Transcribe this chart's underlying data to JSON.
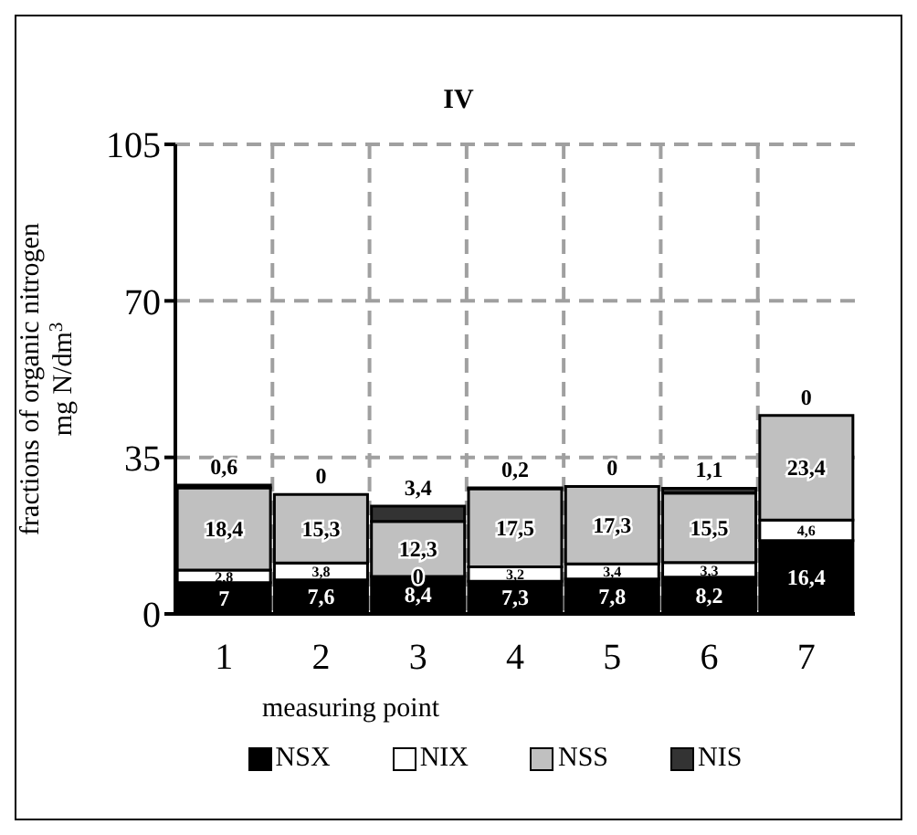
{
  "chart_data": {
    "type": "bar",
    "title": "IV",
    "xlabel": "measuring point",
    "ylabel": "fractions of organic nitrogen\nmg N/dm$^{3}$",
    "categories": [
      "1",
      "2",
      "3",
      "4",
      "5",
      "6",
      "7"
    ],
    "stacked": true,
    "ylim": [
      0,
      105
    ],
    "yticks": [
      0,
      35,
      70,
      105
    ],
    "grid": true,
    "legend": "bottom",
    "series": [
      {
        "name": "NSX",
        "color": "#000000",
        "values": [
          7,
          7.6,
          8.4,
          7.3,
          7.8,
          8.2,
          16.4
        ],
        "value_labels": [
          "7",
          "7,6",
          "8,4",
          "7,3",
          "7,8",
          "8,2",
          "16,4"
        ]
      },
      {
        "name": "NIX",
        "color": "#ffffff",
        "values": [
          2.8,
          3.8,
          0,
          3.2,
          3.4,
          3.3,
          4.6
        ],
        "value_labels": [
          "2,8",
          "3,8",
          "0",
          "3,2",
          "3,4",
          "3,3",
          "4,6"
        ]
      },
      {
        "name": "NSS",
        "color": "#c0c0c0",
        "values": [
          18.4,
          15.3,
          12.3,
          17.5,
          17.3,
          15.5,
          23.4
        ],
        "value_labels": [
          "18,4",
          "15,3",
          "12,3",
          "17,5",
          "17,3",
          "15,5",
          "23,4"
        ]
      },
      {
        "name": "NIS",
        "color": "#333333",
        "values": [
          0.6,
          0,
          3.4,
          0.2,
          0,
          1.1,
          0
        ],
        "value_labels": [
          "0,6",
          "0",
          "3,4",
          "0,2",
          "0",
          "1,1",
          "0"
        ]
      }
    ]
  }
}
